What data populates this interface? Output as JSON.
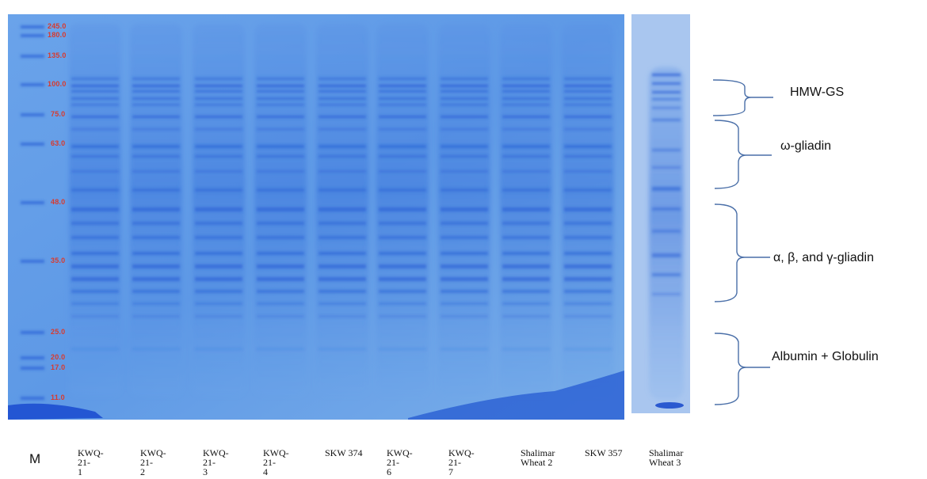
{
  "marker": {
    "label": "M",
    "sizes": [
      "245.0",
      "180.0",
      "135.0",
      "100.0",
      "75.0",
      "63.0",
      "48.0",
      "35.0",
      "25.0",
      "20.0",
      "17.0",
      "11.0"
    ]
  },
  "lanes": [
    {
      "label": "KWQ-21-\n1"
    },
    {
      "label": "KWQ-21-\n2"
    },
    {
      "label": "KWQ-21-\n3"
    },
    {
      "label": "KWQ-21-\n4"
    },
    {
      "label": "SKW 374"
    },
    {
      "label": "KWQ-21-\n6"
    },
    {
      "label": "KWQ-21-\n7"
    },
    {
      "label": "Shalimar\nWheat 2"
    },
    {
      "label": "SKW 357"
    },
    {
      "label": "Shalimar\nWheat 3"
    }
  ],
  "regions": [
    {
      "label": "HMW-GS"
    },
    {
      "label": "ω-gliadin"
    },
    {
      "label": "α, β, and γ-gliadin"
    },
    {
      "label": "Albumin + Globulin"
    }
  ],
  "colors": {
    "gel_background": "#5f9be6",
    "band": "#2a5fd6",
    "marker_text": "#d83a2e",
    "bracket": "#4a6fa8"
  }
}
